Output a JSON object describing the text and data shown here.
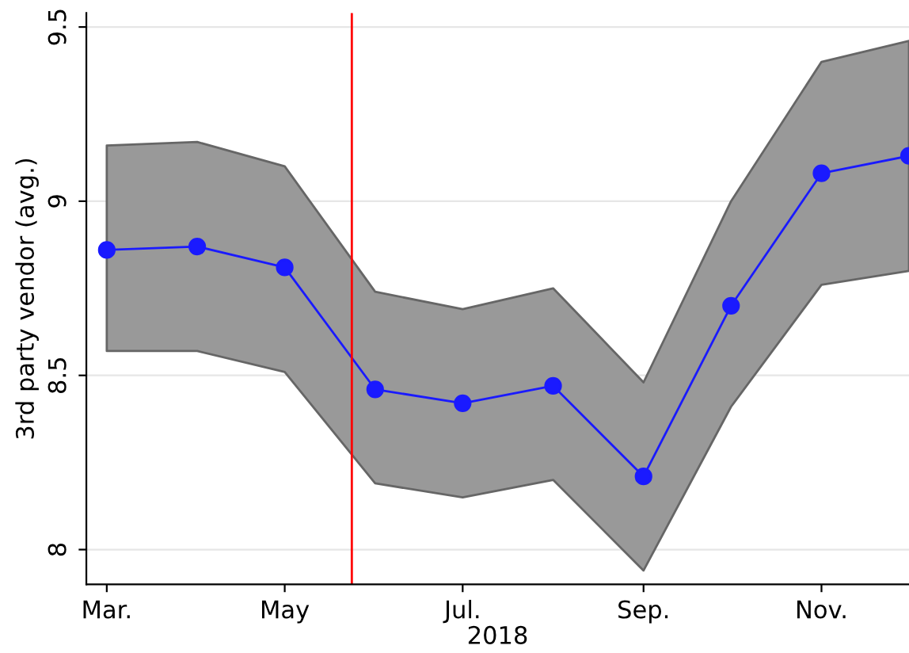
{
  "chart_data": {
    "type": "line",
    "xlabel": "2018",
    "ylabel": "3rd party vendor (avg.)",
    "x": [
      "2018-03",
      "2018-04",
      "2018-05",
      "2018-06",
      "2018-07",
      "2018-08",
      "2018-09",
      "2018-10",
      "2018-11",
      "2018-12"
    ],
    "series": [
      {
        "color": "#1a1aff",
        "values": [
          8.86,
          8.87,
          8.81,
          8.46,
          8.42,
          8.47,
          8.21,
          8.7,
          9.08,
          9.13
        ],
        "lower": [
          8.57,
          8.57,
          8.51,
          8.19,
          8.15,
          8.2,
          7.94,
          8.41,
          8.76,
          8.8
        ],
        "upper": [
          9.16,
          9.17,
          9.1,
          8.74,
          8.69,
          8.75,
          8.48,
          9.0,
          9.4,
          9.46
        ]
      }
    ],
    "xlim": [
      "2018-02-22",
      "2018-12-01"
    ],
    "xticks": [
      {
        "value": "2018-03",
        "label": "Mar."
      },
      {
        "value": "2018-05",
        "label": "May"
      },
      {
        "value": "2018-07",
        "label": "Jul."
      },
      {
        "value": "2018-09",
        "label": "Sep."
      },
      {
        "value": "2018-11",
        "label": "Nov."
      }
    ],
    "ylim": [
      7.9,
      9.54
    ],
    "yticks": [
      8,
      8.5,
      9,
      9.5
    ],
    "ref_lines": [
      {
        "axis": "x",
        "value": "2018-05-24",
        "color": "#ff0000"
      }
    ],
    "grid": "y",
    "marker": "circle",
    "line_style": "solid",
    "legend": false
  }
}
